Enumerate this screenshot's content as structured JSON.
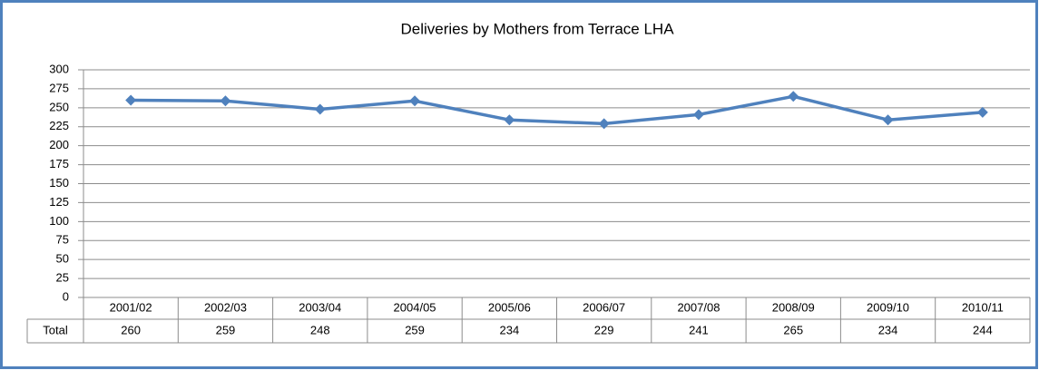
{
  "chart_data": {
    "type": "line",
    "title": "Deliveries by Mothers from Terrace LHA",
    "categories": [
      "2001/02",
      "2002/03",
      "2003/04",
      "2004/05",
      "2005/06",
      "2006/07",
      "2007/08",
      "2008/09",
      "2009/10",
      "2010/11"
    ],
    "series": [
      {
        "name": "Total",
        "color": "#4f81bd",
        "values": [
          260,
          259,
          248,
          259,
          234,
          229,
          241,
          265,
          234,
          244
        ]
      }
    ],
    "ylim": [
      0,
      300
    ],
    "yticks": [
      0,
      25,
      50,
      75,
      100,
      125,
      150,
      175,
      200,
      225,
      250,
      275,
      300
    ],
    "grid": true
  }
}
